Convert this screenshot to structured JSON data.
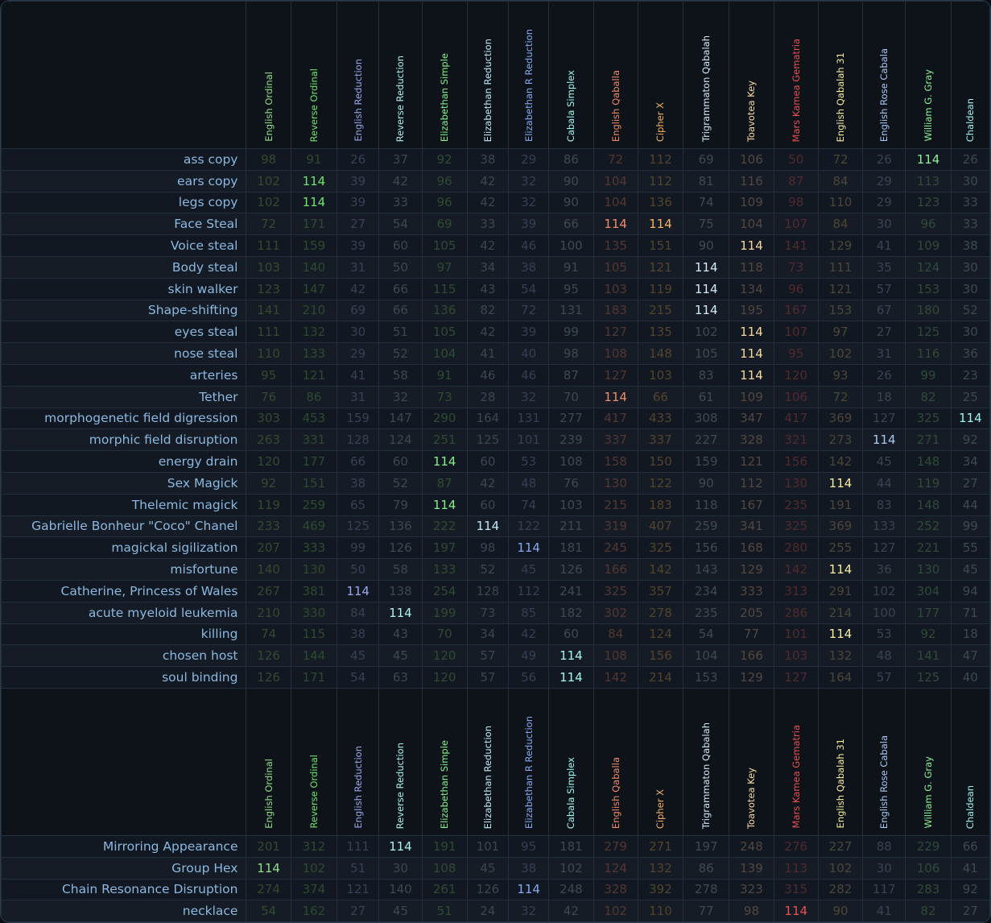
{
  "columns": [
    {
      "name": "English Ordinal",
      "color": "#8fe08a",
      "dim": "#34492f"
    },
    {
      "name": "Reverse Ordinal",
      "color": "#6fe36f",
      "dim": "#2d4a2e"
    },
    {
      "name": "English Reduction",
      "color": "#9aa8ee",
      "dim": "#3a3f55"
    },
    {
      "name": "Reverse Reduction",
      "color": "#a9f0ee",
      "dim": "#3e4650"
    },
    {
      "name": "Elizabethan Simple",
      "color": "#84f08c",
      "dim": "#2f4a33"
    },
    {
      "name": "Elizabethan Reduction",
      "color": "#bfe8f8",
      "dim": "#3b4650"
    },
    {
      "name": "Elizabethan R Reduction",
      "color": "#88a8f0",
      "dim": "#353f55"
    },
    {
      "name": "Cabala Simplex",
      "color": "#a0f8ec",
      "dim": "#3d4a4c"
    },
    {
      "name": "English Qaballa",
      "color": "#f08a6a",
      "dim": "#543630"
    },
    {
      "name": "Cipher X",
      "color": "#f4b060",
      "dim": "#53432c"
    },
    {
      "name": "Trigrammaton Qabalah",
      "color": "#cfe8fa",
      "dim": "#414850"
    },
    {
      "name": "Toavotea Key",
      "color": "#f6d6a0",
      "dim": "#514740"
    },
    {
      "name": "Mars Kamea Gematria",
      "color": "#e85050",
      "dim": "#502a2e"
    },
    {
      "name": "English Qabalah 31",
      "color": "#f8ec9a",
      "dim": "#4a4638"
    },
    {
      "name": "English Rose Cabala",
      "color": "#a8c8f4",
      "dim": "#3a4350"
    },
    {
      "name": "William G. Gray",
      "color": "#8cf098",
      "dim": "#2f4a38"
    },
    {
      "name": "Chaldean",
      "color": "#9ef2f0",
      "dim": "#3a4a4e"
    }
  ],
  "rows_top": [
    {
      "label": "ass copy",
      "values": [
        "98",
        "91",
        "26",
        "37",
        "92",
        "38",
        "29",
        "86",
        "72",
        "112",
        "69",
        "106",
        "50",
        "72",
        "26",
        "114",
        "26"
      ]
    },
    {
      "label": "ears copy",
      "values": [
        "102",
        "114",
        "39",
        "42",
        "96",
        "42",
        "32",
        "90",
        "104",
        "112",
        "81",
        "116",
        "87",
        "84",
        "29",
        "113",
        "30"
      ]
    },
    {
      "label": "legs copy",
      "values": [
        "102",
        "114",
        "39",
        "33",
        "96",
        "42",
        "32",
        "90",
        "104",
        "136",
        "74",
        "109",
        "98",
        "110",
        "29",
        "123",
        "33"
      ]
    },
    {
      "label": "Face Steal",
      "values": [
        "72",
        "171",
        "27",
        "54",
        "69",
        "33",
        "39",
        "66",
        "114",
        "114",
        "75",
        "104",
        "107",
        "84",
        "30",
        "96",
        "33"
      ]
    },
    {
      "label": "Voice steal",
      "values": [
        "111",
        "159",
        "39",
        "60",
        "105",
        "42",
        "46",
        "100",
        "135",
        "151",
        "90",
        "114",
        "141",
        "129",
        "41",
        "109",
        "38"
      ]
    },
    {
      "label": "Body steal",
      "values": [
        "103",
        "140",
        "31",
        "50",
        "97",
        "34",
        "38",
        "91",
        "105",
        "121",
        "114",
        "118",
        "73",
        "111",
        "35",
        "124",
        "30"
      ]
    },
    {
      "label": "skin walker",
      "values": [
        "123",
        "147",
        "42",
        "66",
        "115",
        "43",
        "54",
        "95",
        "103",
        "119",
        "114",
        "134",
        "96",
        "121",
        "57",
        "153",
        "30"
      ]
    },
    {
      "label": "Shape-shifting",
      "values": [
        "141",
        "210",
        "69",
        "66",
        "136",
        "82",
        "72",
        "131",
        "183",
        "215",
        "114",
        "195",
        "167",
        "153",
        "67",
        "180",
        "52"
      ]
    },
    {
      "label": "eyes steal",
      "values": [
        "111",
        "132",
        "30",
        "51",
        "105",
        "42",
        "39",
        "99",
        "127",
        "135",
        "102",
        "114",
        "107",
        "97",
        "27",
        "125",
        "30"
      ]
    },
    {
      "label": "nose steal",
      "values": [
        "110",
        "133",
        "29",
        "52",
        "104",
        "41",
        "40",
        "98",
        "108",
        "148",
        "105",
        "114",
        "95",
        "102",
        "31",
        "116",
        "36"
      ]
    },
    {
      "label": "arteries",
      "values": [
        "95",
        "121",
        "41",
        "58",
        "91",
        "46",
        "46",
        "87",
        "127",
        "103",
        "83",
        "114",
        "120",
        "93",
        "26",
        "99",
        "23"
      ]
    },
    {
      "label": "Tether",
      "values": [
        "76",
        "86",
        "31",
        "32",
        "73",
        "28",
        "32",
        "70",
        "114",
        "66",
        "61",
        "109",
        "106",
        "72",
        "18",
        "82",
        "25"
      ]
    },
    {
      "label": "morphogenetic field digression",
      "values": [
        "303",
        "453",
        "159",
        "147",
        "290",
        "164",
        "131",
        "277",
        "417",
        "433",
        "308",
        "347",
        "417",
        "369",
        "127",
        "325",
        "114"
      ]
    },
    {
      "label": "morphic field disruption",
      "values": [
        "263",
        "331",
        "128",
        "124",
        "251",
        "125",
        "101",
        "239",
        "337",
        "337",
        "227",
        "328",
        "321",
        "273",
        "114",
        "271",
        "92"
      ]
    },
    {
      "label": "energy drain",
      "values": [
        "120",
        "177",
        "66",
        "60",
        "114",
        "60",
        "53",
        "108",
        "158",
        "150",
        "159",
        "121",
        "156",
        "142",
        "45",
        "148",
        "34"
      ]
    },
    {
      "label": "Sex Magick",
      "values": [
        "92",
        "151",
        "38",
        "52",
        "87",
        "42",
        "48",
        "76",
        "130",
        "122",
        "90",
        "112",
        "130",
        "114",
        "44",
        "119",
        "27"
      ]
    },
    {
      "label": "Thelemic magick",
      "values": [
        "119",
        "259",
        "65",
        "79",
        "114",
        "60",
        "74",
        "103",
        "215",
        "183",
        "118",
        "167",
        "235",
        "191",
        "83",
        "148",
        "44"
      ]
    },
    {
      "label": "Gabrielle Bonheur \"Coco\" Chanel",
      "values": [
        "233",
        "469",
        "125",
        "136",
        "222",
        "114",
        "122",
        "211",
        "319",
        "407",
        "259",
        "341",
        "325",
        "369",
        "133",
        "252",
        "99"
      ]
    },
    {
      "label": "magickal sigilization",
      "values": [
        "207",
        "333",
        "99",
        "126",
        "197",
        "98",
        "114",
        "181",
        "245",
        "325",
        "156",
        "168",
        "280",
        "255",
        "127",
        "221",
        "55"
      ]
    },
    {
      "label": "misfortune",
      "values": [
        "140",
        "130",
        "50",
        "58",
        "133",
        "52",
        "45",
        "126",
        "166",
        "142",
        "143",
        "129",
        "142",
        "114",
        "36",
        "130",
        "45"
      ]
    },
    {
      "label": "Catherine, Princess of Wales",
      "values": [
        "267",
        "381",
        "114",
        "138",
        "254",
        "128",
        "112",
        "241",
        "325",
        "357",
        "234",
        "333",
        "313",
        "291",
        "102",
        "304",
        "94"
      ]
    },
    {
      "label": "acute myeloid leukemia",
      "values": [
        "210",
        "330",
        "84",
        "114",
        "199",
        "73",
        "85",
        "182",
        "302",
        "278",
        "235",
        "205",
        "286",
        "214",
        "100",
        "177",
        "71"
      ]
    },
    {
      "label": "killing",
      "values": [
        "74",
        "115",
        "38",
        "43",
        "70",
        "34",
        "42",
        "60",
        "84",
        "124",
        "54",
        "77",
        "101",
        "114",
        "53",
        "92",
        "18"
      ]
    },
    {
      "label": "chosen host",
      "values": [
        "126",
        "144",
        "45",
        "45",
        "120",
        "57",
        "49",
        "114",
        "108",
        "156",
        "104",
        "166",
        "103",
        "132",
        "48",
        "141",
        "47"
      ]
    },
    {
      "label": "soul binding",
      "values": [
        "126",
        "171",
        "54",
        "63",
        "120",
        "57",
        "56",
        "114",
        "142",
        "214",
        "153",
        "129",
        "127",
        "164",
        "57",
        "125",
        "40"
      ]
    }
  ],
  "rows_bottom": [
    {
      "label": "Mirroring Appearance",
      "values": [
        "201",
        "312",
        "111",
        "114",
        "191",
        "101",
        "95",
        "181",
        "279",
        "271",
        "197",
        "248",
        "276",
        "227",
        "88",
        "229",
        "66"
      ]
    },
    {
      "label": "Group Hex",
      "values": [
        "114",
        "102",
        "51",
        "30",
        "108",
        "45",
        "38",
        "102",
        "124",
        "132",
        "86",
        "139",
        "113",
        "102",
        "30",
        "106",
        "41"
      ]
    },
    {
      "label": "Chain Resonance Disruption",
      "values": [
        "274",
        "374",
        "121",
        "140",
        "261",
        "126",
        "114",
        "248",
        "328",
        "392",
        "278",
        "323",
        "315",
        "282",
        "117",
        "283",
        "92"
      ]
    },
    {
      "label": "necklace",
      "values": [
        "54",
        "162",
        "27",
        "45",
        "51",
        "24",
        "32",
        "42",
        "102",
        "110",
        "77",
        "98",
        "114",
        "90",
        "41",
        "82",
        "27"
      ]
    }
  ],
  "highlight_value": "114"
}
